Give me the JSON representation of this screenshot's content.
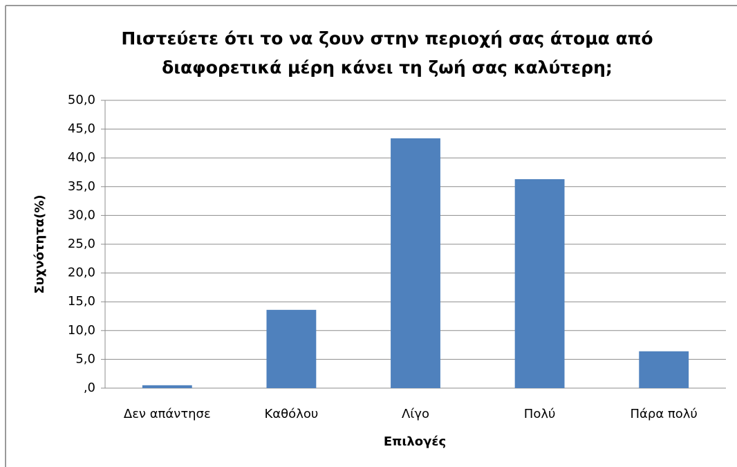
{
  "chart_data": {
    "type": "bar",
    "title": [
      "Πιστεύετε ότι το να ζουν στην περιοχή σας άτομα από",
      "διαφορετικά μέρη κάνει τη ζωή σας καλύτερη;"
    ],
    "x_label": "Επιλογές",
    "y_label": "Συχνότητα(%)",
    "categories": [
      "Δεν απάντησε",
      "Καθόλου",
      "Λίγο",
      "Πολύ",
      "Πάρα πολύ"
    ],
    "values": [
      0.5,
      13.6,
      43.4,
      36.3,
      6.4
    ],
    "color": "#4f81bd",
    "ylim": [
      0,
      50
    ],
    "yticks": [
      {
        "value": 0,
        "label": ",0"
      },
      {
        "value": 5,
        "label": "5,0"
      },
      {
        "value": 10,
        "label": "10,0"
      },
      {
        "value": 15,
        "label": "15,0"
      },
      {
        "value": 20,
        "label": "20,0"
      },
      {
        "value": 25,
        "label": "25,0"
      },
      {
        "value": 30,
        "label": "30,0"
      },
      {
        "value": 35,
        "label": "35,0"
      },
      {
        "value": 40,
        "label": "40,0"
      },
      {
        "value": 45,
        "label": "45,0"
      },
      {
        "value": 50,
        "label": "50,0"
      }
    ],
    "grid": true
  }
}
